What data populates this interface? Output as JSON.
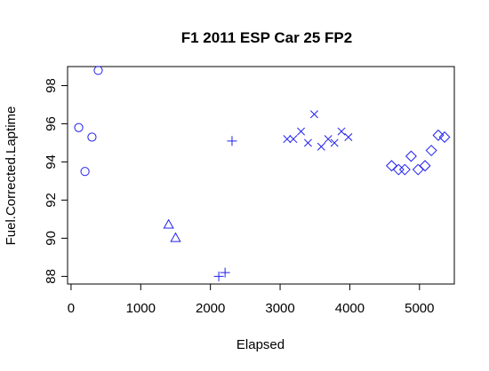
{
  "chart_data": {
    "type": "scatter",
    "title": "F1 2011 ESP Car 25 FP2",
    "xlabel": "Elapsed",
    "ylabel": "Fuel.Corrected.Laptime",
    "xlim": [
      -50,
      5500
    ],
    "ylim": [
      87.6,
      99.0
    ],
    "xticks": [
      0,
      1000,
      2000,
      3000,
      4000,
      5000
    ],
    "yticks": [
      88,
      90,
      92,
      94,
      96,
      98
    ],
    "grid": false,
    "legend": false,
    "point_color": "#2020ee",
    "series": [
      {
        "marker": "circle",
        "x": [
          110,
          200,
          300,
          390
        ],
        "y": [
          95.8,
          93.5,
          95.3,
          98.8
        ]
      },
      {
        "marker": "triangle",
        "x": [
          1400,
          1500
        ],
        "y": [
          90.7,
          90.0
        ]
      },
      {
        "marker": "plus",
        "x": [
          2120,
          2210,
          2310
        ],
        "y": [
          88.0,
          88.2,
          95.1
        ]
      },
      {
        "marker": "cross",
        "x": [
          3100,
          3190,
          3300,
          3400,
          3490,
          3590,
          3690,
          3780,
          3880,
          3980
        ],
        "y": [
          95.2,
          95.2,
          95.6,
          95.0,
          96.5,
          94.8,
          95.2,
          95.0,
          95.6,
          95.3
        ]
      },
      {
        "marker": "diamond",
        "x": [
          4600,
          4700,
          4790,
          4880,
          4980,
          5080,
          5170,
          5270,
          5360
        ],
        "y": [
          93.8,
          93.6,
          93.6,
          94.3,
          93.6,
          93.8,
          94.6,
          95.4,
          95.3
        ]
      }
    ]
  }
}
